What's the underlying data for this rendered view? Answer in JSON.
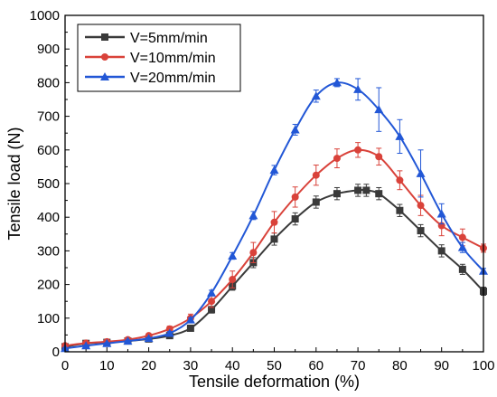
{
  "chart_data": {
    "type": "line",
    "title": "",
    "xlabel": "Tensile deformation (%)",
    "ylabel": "Tensile load (N)",
    "xlim": [
      0,
      100
    ],
    "ylim": [
      0,
      1000
    ],
    "x_ticks": [
      0,
      10,
      20,
      30,
      40,
      50,
      60,
      70,
      80,
      90,
      100
    ],
    "y_ticks": [
      0,
      100,
      200,
      300,
      400,
      500,
      600,
      700,
      800,
      900,
      1000
    ],
    "grid": false,
    "legend_position": "top-left",
    "series": [
      {
        "name": "V=5mm/min",
        "color": "#3a3a3a",
        "marker": "square",
        "x": [
          0,
          5,
          10,
          15,
          20,
          25,
          30,
          35,
          40,
          45,
          50,
          55,
          60,
          65,
          70,
          72,
          75,
          80,
          85,
          90,
          95,
          100
        ],
        "y": [
          15,
          25,
          28,
          32,
          38,
          48,
          70,
          125,
          195,
          265,
          335,
          395,
          445,
          470,
          480,
          480,
          470,
          420,
          360,
          300,
          245,
          180
        ],
        "error": [
          3,
          3,
          3,
          3,
          4,
          5,
          8,
          10,
          12,
          15,
          18,
          18,
          18,
          18,
          18,
          18,
          18,
          18,
          18,
          18,
          15,
          12
        ]
      },
      {
        "name": "V=10mm/min",
        "color": "#d9423a",
        "marker": "circle",
        "x": [
          0,
          5,
          10,
          15,
          20,
          25,
          30,
          35,
          40,
          45,
          50,
          55,
          60,
          65,
          70,
          75,
          80,
          85,
          90,
          95,
          100
        ],
        "y": [
          18,
          26,
          30,
          36,
          48,
          68,
          100,
          150,
          215,
          295,
          385,
          460,
          525,
          575,
          600,
          580,
          510,
          435,
          375,
          340,
          308
        ],
        "error": [
          3,
          3,
          3,
          4,
          5,
          8,
          12,
          18,
          25,
          30,
          32,
          30,
          30,
          28,
          22,
          25,
          28,
          30,
          30,
          25,
          12
        ]
      },
      {
        "name": "V=20mm/min",
        "color": "#2257d6",
        "marker": "triangle",
        "x": [
          0,
          5,
          10,
          15,
          20,
          25,
          30,
          35,
          40,
          45,
          50,
          55,
          60,
          65,
          70,
          75,
          80,
          85,
          90,
          95,
          100
        ],
        "y": [
          10,
          18,
          25,
          32,
          40,
          55,
          95,
          175,
          285,
          405,
          540,
          660,
          760,
          800,
          780,
          720,
          640,
          530,
          410,
          310,
          240
        ],
        "error": [
          2,
          2,
          2,
          3,
          3,
          5,
          6,
          8,
          10,
          12,
          14,
          16,
          18,
          12,
          32,
          65,
          50,
          70,
          30,
          15,
          8
        ]
      }
    ]
  }
}
